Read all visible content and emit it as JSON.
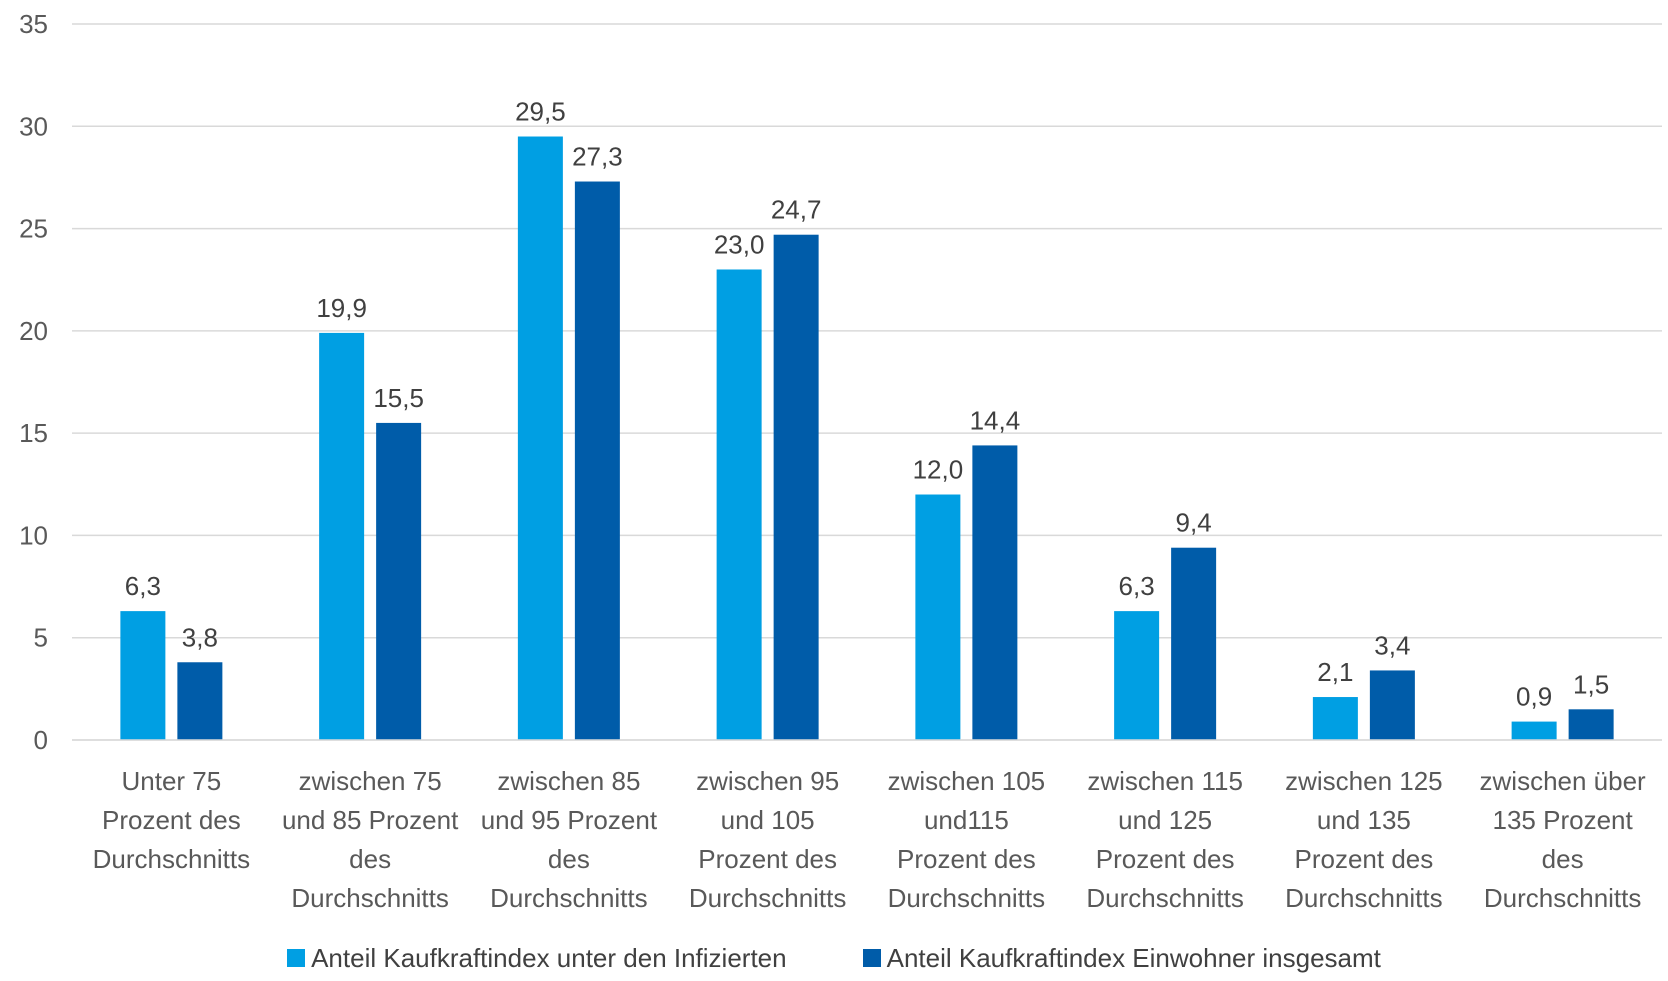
{
  "chart_data": {
    "type": "bar",
    "title": "",
    "xlabel": "",
    "ylabel": "",
    "ylim": [
      0,
      35
    ],
    "yticks": [
      "0",
      "5",
      "10",
      "15",
      "20",
      "25",
      "30",
      "35"
    ],
    "grid": true,
    "legend_position": "bottom",
    "categories": [
      [
        "Unter 75",
        "Prozent des",
        "Durchschnitts"
      ],
      [
        "zwischen 75",
        "und 85 Prozent",
        "des",
        "Durchschnitts"
      ],
      [
        "zwischen 85",
        "und 95 Prozent",
        "des",
        "Durchschnitts"
      ],
      [
        "zwischen 95",
        "und 105",
        "Prozent des",
        "Durchschnitts"
      ],
      [
        "zwischen 105",
        "und115",
        "Prozent des",
        "Durchschnitts"
      ],
      [
        "zwischen 115",
        "und 125",
        "Prozent des",
        "Durchschnitts"
      ],
      [
        "zwischen 125",
        "und 135",
        "Prozent des",
        "Durchschnitts"
      ],
      [
        "zwischen über",
        "135 Prozent",
        "des",
        "Durchschnitts"
      ]
    ],
    "series": [
      {
        "name": "Anteil Kaufkraftindex unter den Infizierten",
        "color": "#009FE3",
        "values": [
          6.3,
          19.9,
          29.5,
          23.0,
          12.0,
          6.3,
          2.1,
          0.9
        ],
        "labels": [
          "6,3",
          "19,9",
          "29,5",
          "23,0",
          "12,0",
          "6,3",
          "2,1",
          "0,9"
        ]
      },
      {
        "name": "Anteil Kaufkraftindex Einwohner insgesamt",
        "color": "#005CA9",
        "values": [
          3.8,
          15.5,
          27.3,
          24.7,
          14.4,
          9.4,
          3.4,
          1.5
        ],
        "labels": [
          "3,8",
          "15,5",
          "27,3",
          "24,7",
          "14,4",
          "9,4",
          "3,4",
          "1,5"
        ]
      }
    ]
  },
  "legend": {
    "items": [
      {
        "label": "Anteil Kaufkraftindex unter den Infizierten",
        "color": "#009FE3"
      },
      {
        "label": "Anteil Kaufkraftindex Einwohner insgesamt",
        "color": "#005CA9"
      }
    ]
  }
}
